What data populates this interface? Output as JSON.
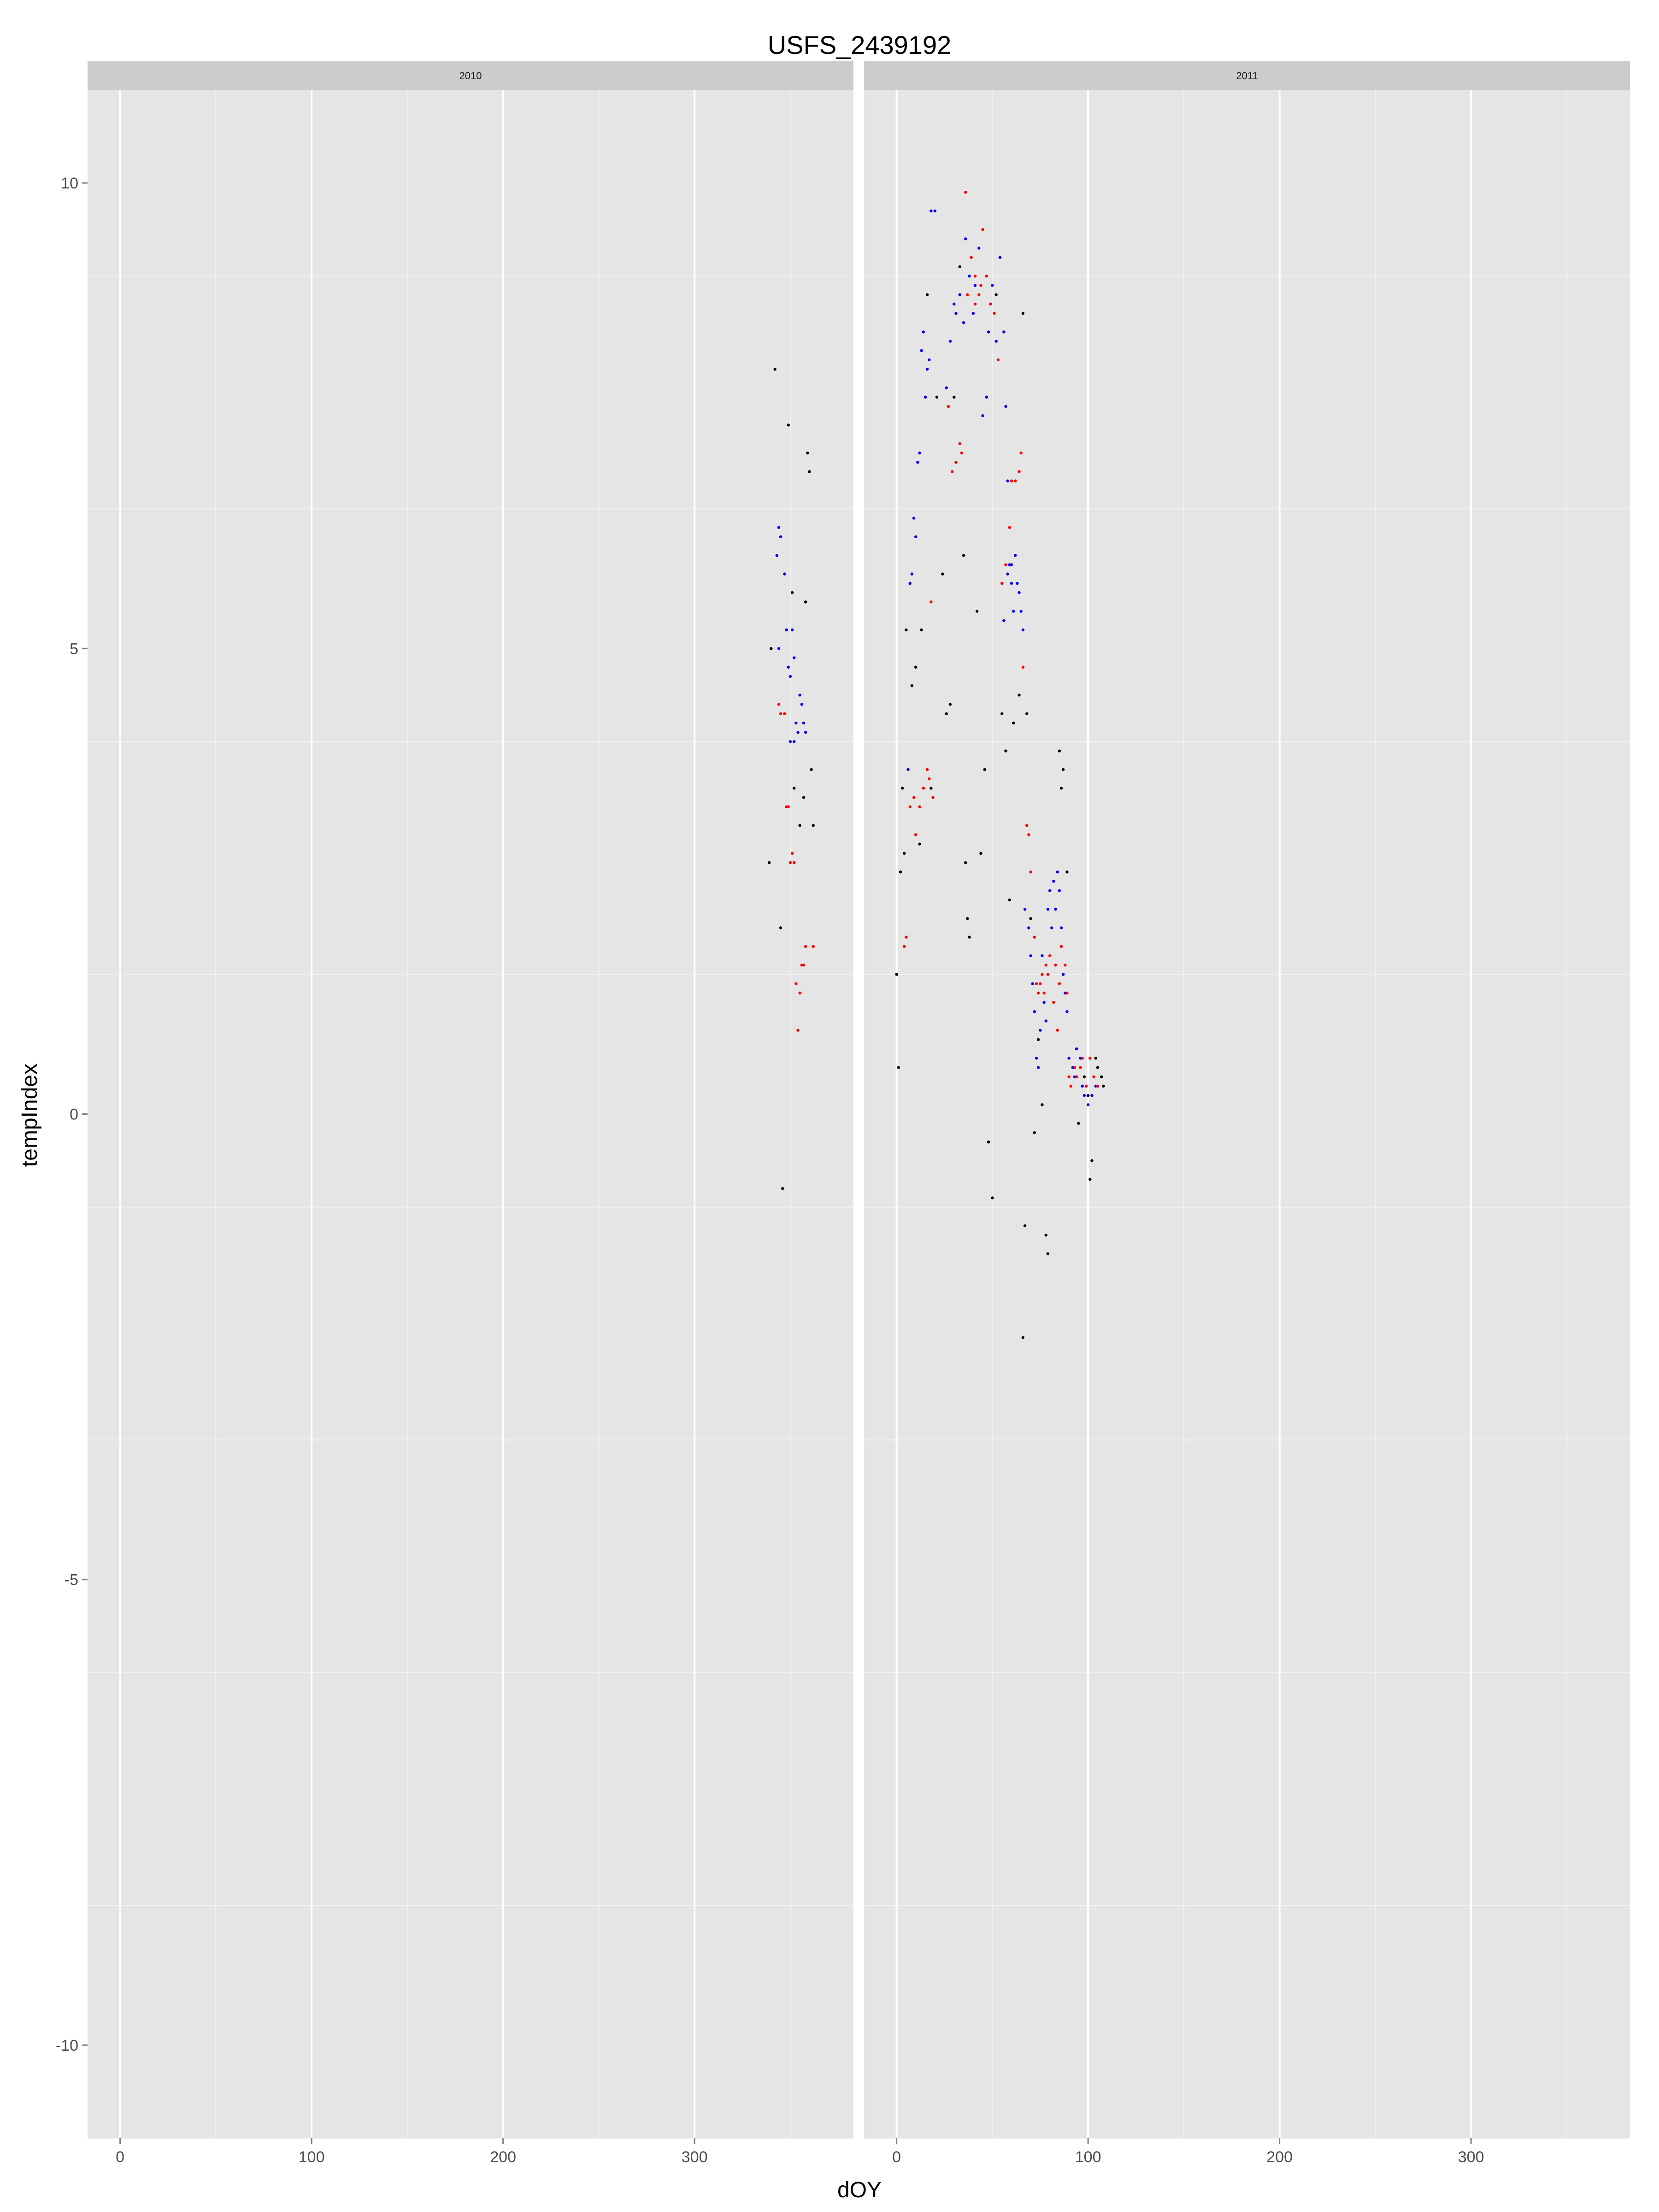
{
  "chart_data": {
    "type": "scatter",
    "title": "USFS_2439192",
    "xlabel": "dOY",
    "ylabel": "tempIndex",
    "xlim": [
      -17,
      383
    ],
    "ylim": [
      -11,
      11
    ],
    "x_ticks": [
      0,
      100,
      200,
      300
    ],
    "y_ticks": [
      -10,
      -5,
      0,
      5,
      10
    ],
    "grid": true,
    "legend": "none",
    "series_colors": [
      "#000000",
      "#0000ff",
      "#ff0000"
    ],
    "panels": [
      {
        "label": "2010",
        "series": [
          {
            "color": "#000000",
            "points": [
              [
                339,
                2.7
              ],
              [
                342,
                8.0
              ],
              [
                345,
                2.0
              ],
              [
                346,
                -0.8
              ],
              [
                349,
                7.4
              ],
              [
                351,
                5.6
              ],
              [
                352,
                3.5
              ],
              [
                355,
                3.1
              ],
              [
                357,
                3.4
              ],
              [
                358,
                5.5
              ],
              [
                359,
                7.1
              ],
              [
                360,
                6.9
              ],
              [
                361,
                3.7
              ],
              [
                362,
                3.1
              ],
              [
                340,
                5.0
              ]
            ]
          },
          {
            "color": "#0000ff",
            "points": [
              [
                343,
                6.0
              ],
              [
                344,
                6.3
              ],
              [
                345,
                6.2
              ],
              [
                347,
                5.8
              ],
              [
                348,
                5.2
              ],
              [
                349,
                4.8
              ],
              [
                350,
                4.7
              ],
              [
                351,
                5.2
              ],
              [
                352,
                4.9
              ],
              [
                353,
                4.2
              ],
              [
                354,
                4.1
              ],
              [
                355,
                4.5
              ],
              [
                356,
                4.4
              ],
              [
                357,
                4.2
              ],
              [
                358,
                4.1
              ],
              [
                344,
                5.0
              ],
              [
                350,
                4.0
              ],
              [
                352,
                4.0
              ]
            ]
          },
          {
            "color": "#ff0000",
            "points": [
              [
                344,
                4.4
              ],
              [
                345,
                4.3
              ],
              [
                347,
                4.3
              ],
              [
                348,
                3.3
              ],
              [
                349,
                3.3
              ],
              [
                350,
                2.7
              ],
              [
                352,
                2.7
              ],
              [
                353,
                1.4
              ],
              [
                354,
                0.9
              ],
              [
                355,
                1.3
              ],
              [
                356,
                1.6
              ],
              [
                357,
                1.6
              ],
              [
                358,
                1.8
              ],
              [
                362,
                1.8
              ],
              [
                351,
                2.8
              ]
            ]
          }
        ]
      },
      {
        "label": "2011",
        "series": [
          {
            "color": "#000000",
            "points": [
              [
                0,
                1.5
              ],
              [
                1,
                0.5
              ],
              [
                2,
                2.6
              ],
              [
                3,
                3.5
              ],
              [
                4,
                2.8
              ],
              [
                5,
                5.2
              ],
              [
                8,
                4.6
              ],
              [
                10,
                4.8
              ],
              [
                12,
                2.9
              ],
              [
                13,
                5.2
              ],
              [
                16,
                8.8
              ],
              [
                18,
                3.5
              ],
              [
                21,
                7.7
              ],
              [
                24,
                5.8
              ],
              [
                26,
                4.3
              ],
              [
                28,
                4.4
              ],
              [
                30,
                7.7
              ],
              [
                33,
                9.1
              ],
              [
                35,
                6.0
              ],
              [
                36,
                2.7
              ],
              [
                37,
                2.1
              ],
              [
                38,
                1.9
              ],
              [
                42,
                5.4
              ],
              [
                44,
                2.8
              ],
              [
                46,
                3.7
              ],
              [
                48,
                -0.3
              ],
              [
                50,
                -0.9
              ],
              [
                52,
                8.8
              ],
              [
                55,
                4.3
              ],
              [
                57,
                3.9
              ],
              [
                59,
                2.3
              ],
              [
                61,
                4.2
              ],
              [
                64,
                4.5
              ],
              [
                66,
                8.6
              ],
              [
                67,
                -1.2
              ],
              [
                66,
                -2.4
              ],
              [
                68,
                4.3
              ],
              [
                70,
                2.1
              ],
              [
                72,
                -0.2
              ],
              [
                74,
                0.8
              ],
              [
                76,
                0.1
              ],
              [
                78,
                -1.3
              ],
              [
                79,
                -1.5
              ],
              [
                85,
                3.9
              ],
              [
                86,
                3.5
              ],
              [
                87,
                3.7
              ],
              [
                89,
                2.6
              ],
              [
                92,
                0.5
              ],
              [
                95,
                -0.1
              ],
              [
                98,
                0.4
              ],
              [
                100,
                0.2
              ],
              [
                101,
                -0.7
              ],
              [
                102,
                -0.5
              ],
              [
                104,
                0.6
              ],
              [
                105,
                0.5
              ],
              [
                107,
                0.4
              ],
              [
                108,
                0.3
              ]
            ]
          },
          {
            "color": "#0000ff",
            "points": [
              [
                6,
                3.7
              ],
              [
                7,
                5.7
              ],
              [
                8,
                5.8
              ],
              [
                9,
                6.4
              ],
              [
                10,
                6.2
              ],
              [
                11,
                7.0
              ],
              [
                12,
                7.1
              ],
              [
                13,
                8.2
              ],
              [
                14,
                8.4
              ],
              [
                15,
                7.7
              ],
              [
                16,
                8.0
              ],
              [
                17,
                8.1
              ],
              [
                18,
                9.7
              ],
              [
                20,
                9.7
              ],
              [
                26,
                7.8
              ],
              [
                28,
                8.3
              ],
              [
                30,
                8.7
              ],
              [
                31,
                8.6
              ],
              [
                33,
                8.8
              ],
              [
                35,
                8.5
              ],
              [
                36,
                9.4
              ],
              [
                38,
                9.0
              ],
              [
                40,
                8.6
              ],
              [
                41,
                8.9
              ],
              [
                43,
                9.3
              ],
              [
                45,
                7.5
              ],
              [
                47,
                7.7
              ],
              [
                48,
                8.4
              ],
              [
                50,
                8.9
              ],
              [
                52,
                8.3
              ],
              [
                54,
                9.2
              ],
              [
                56,
                8.4
              ],
              [
                57,
                7.6
              ],
              [
                58,
                6.8
              ],
              [
                59,
                5.9
              ],
              [
                60,
                5.7
              ],
              [
                61,
                5.4
              ],
              [
                62,
                6.0
              ],
              [
                63,
                5.7
              ],
              [
                64,
                5.6
              ],
              [
                65,
                5.4
              ],
              [
                66,
                5.2
              ],
              [
                67,
                2.2
              ],
              [
                69,
                2.0
              ],
              [
                70,
                1.7
              ],
              [
                71,
                1.4
              ],
              [
                72,
                1.1
              ],
              [
                73,
                0.6
              ],
              [
                74,
                0.5
              ],
              [
                75,
                0.9
              ],
              [
                76,
                1.7
              ],
              [
                77,
                1.2
              ],
              [
                78,
                1.0
              ],
              [
                79,
                2.2
              ],
              [
                80,
                2.4
              ],
              [
                81,
                2.0
              ],
              [
                82,
                2.5
              ],
              [
                83,
                2.2
              ],
              [
                84,
                2.6
              ],
              [
                85,
                2.4
              ],
              [
                86,
                2.0
              ],
              [
                87,
                1.5
              ],
              [
                88,
                1.3
              ],
              [
                89,
                1.1
              ],
              [
                90,
                0.6
              ],
              [
                92,
                0.5
              ],
              [
                93,
                0.4
              ],
              [
                94,
                0.7
              ],
              [
                96,
                0.6
              ],
              [
                97,
                0.3
              ],
              [
                98,
                0.2
              ],
              [
                99,
                0.3
              ],
              [
                100,
                0.1
              ],
              [
                102,
                0.2
              ],
              [
                104,
                0.3
              ],
              [
                56,
                5.3
              ],
              [
                58,
                5.8
              ],
              [
                60,
                5.9
              ]
            ]
          },
          {
            "color": "#ff0000",
            "points": [
              [
                4,
                1.8
              ],
              [
                5,
                1.9
              ],
              [
                7,
                3.3
              ],
              [
                9,
                3.4
              ],
              [
                10,
                3.0
              ],
              [
                12,
                3.3
              ],
              [
                14,
                3.5
              ],
              [
                16,
                3.7
              ],
              [
                17,
                3.6
              ],
              [
                18,
                5.5
              ],
              [
                19,
                3.4
              ],
              [
                27,
                7.6
              ],
              [
                29,
                6.9
              ],
              [
                31,
                7.0
              ],
              [
                33,
                7.2
              ],
              [
                34,
                7.1
              ],
              [
                36,
                9.9
              ],
              [
                37,
                8.8
              ],
              [
                39,
                9.2
              ],
              [
                41,
                9.0
              ],
              [
                43,
                8.8
              ],
              [
                45,
                9.5
              ],
              [
                47,
                9.0
              ],
              [
                49,
                8.7
              ],
              [
                51,
                8.6
              ],
              [
                53,
                8.1
              ],
              [
                55,
                5.7
              ],
              [
                57,
                5.9
              ],
              [
                59,
                6.3
              ],
              [
                60,
                6.8
              ],
              [
                62,
                6.8
              ],
              [
                64,
                6.9
              ],
              [
                65,
                7.1
              ],
              [
                66,
                4.8
              ],
              [
                68,
                3.1
              ],
              [
                69,
                3.0
              ],
              [
                70,
                2.6
              ],
              [
                72,
                1.9
              ],
              [
                73,
                1.4
              ],
              [
                74,
                1.3
              ],
              [
                75,
                1.4
              ],
              [
                76,
                1.5
              ],
              [
                77,
                1.3
              ],
              [
                78,
                1.6
              ],
              [
                79,
                1.5
              ],
              [
                80,
                1.7
              ],
              [
                82,
                1.2
              ],
              [
                83,
                1.6
              ],
              [
                84,
                0.9
              ],
              [
                85,
                1.4
              ],
              [
                86,
                1.8
              ],
              [
                88,
                1.6
              ],
              [
                89,
                1.3
              ],
              [
                90,
                0.4
              ],
              [
                91,
                0.3
              ],
              [
                93,
                0.5
              ],
              [
                94,
                0.4
              ],
              [
                96,
                0.5
              ],
              [
                97,
                0.6
              ],
              [
                99,
                0.3
              ],
              [
                101,
                0.6
              ],
              [
                103,
                0.4
              ],
              [
                105,
                0.3
              ],
              [
                41,
                8.7
              ],
              [
                44,
                8.9
              ]
            ]
          }
        ]
      }
    ]
  }
}
